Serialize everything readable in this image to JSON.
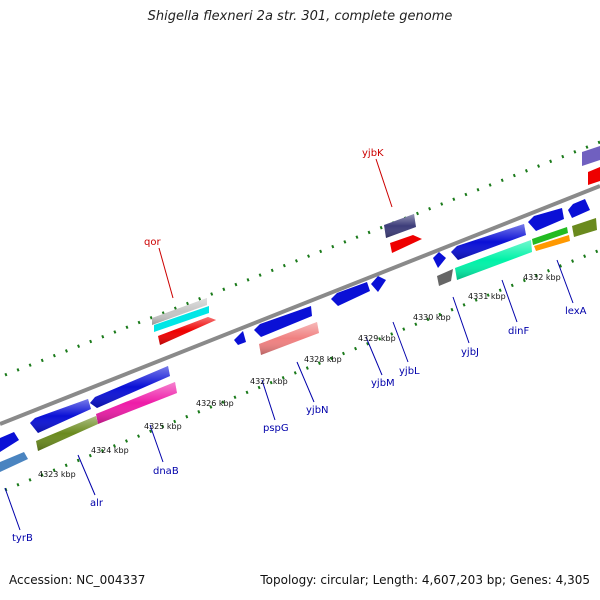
{
  "title": "Shigella flexneri 2a str. 301, complete genome",
  "footer": {
    "accession": "Accession: NC_004337",
    "summary": "Topology: circular; Length: 4,607,203 bp; Genes: 4,305"
  },
  "colors": {
    "backbone": "#888888",
    "tick": "#1a7a1a",
    "label_forward": "#cc0000",
    "label_reverse": "#0000aa"
  },
  "scale_labels": [
    {
      "text": "4323 kbp"
    },
    {
      "text": "4324 kbp"
    },
    {
      "text": "4325 kbp"
    },
    {
      "text": "4326 kbp"
    },
    {
      "text": "4327 kbp"
    },
    {
      "text": "4328 kbp"
    },
    {
      "text": "4329 kbp"
    },
    {
      "text": "4330 kbp"
    },
    {
      "text": "4331 kbp"
    },
    {
      "text": "4332 kbp"
    }
  ],
  "gene_labels": [
    {
      "text": "qor",
      "strand": "forward"
    },
    {
      "text": "yjbK",
      "strand": "forward"
    },
    {
      "text": "tyrB",
      "strand": "reverse"
    },
    {
      "text": "alr",
      "strand": "reverse"
    },
    {
      "text": "dnaB",
      "strand": "reverse"
    },
    {
      "text": "pspG",
      "strand": "reverse"
    },
    {
      "text": "yjbN",
      "strand": "reverse"
    },
    {
      "text": "yjbM",
      "strand": "reverse"
    },
    {
      "text": "yjbL",
      "strand": "reverse"
    },
    {
      "text": "yjbJ",
      "strand": "reverse"
    },
    {
      "text": "dinF",
      "strand": "reverse"
    },
    {
      "text": "lexA",
      "strand": "reverse"
    }
  ]
}
